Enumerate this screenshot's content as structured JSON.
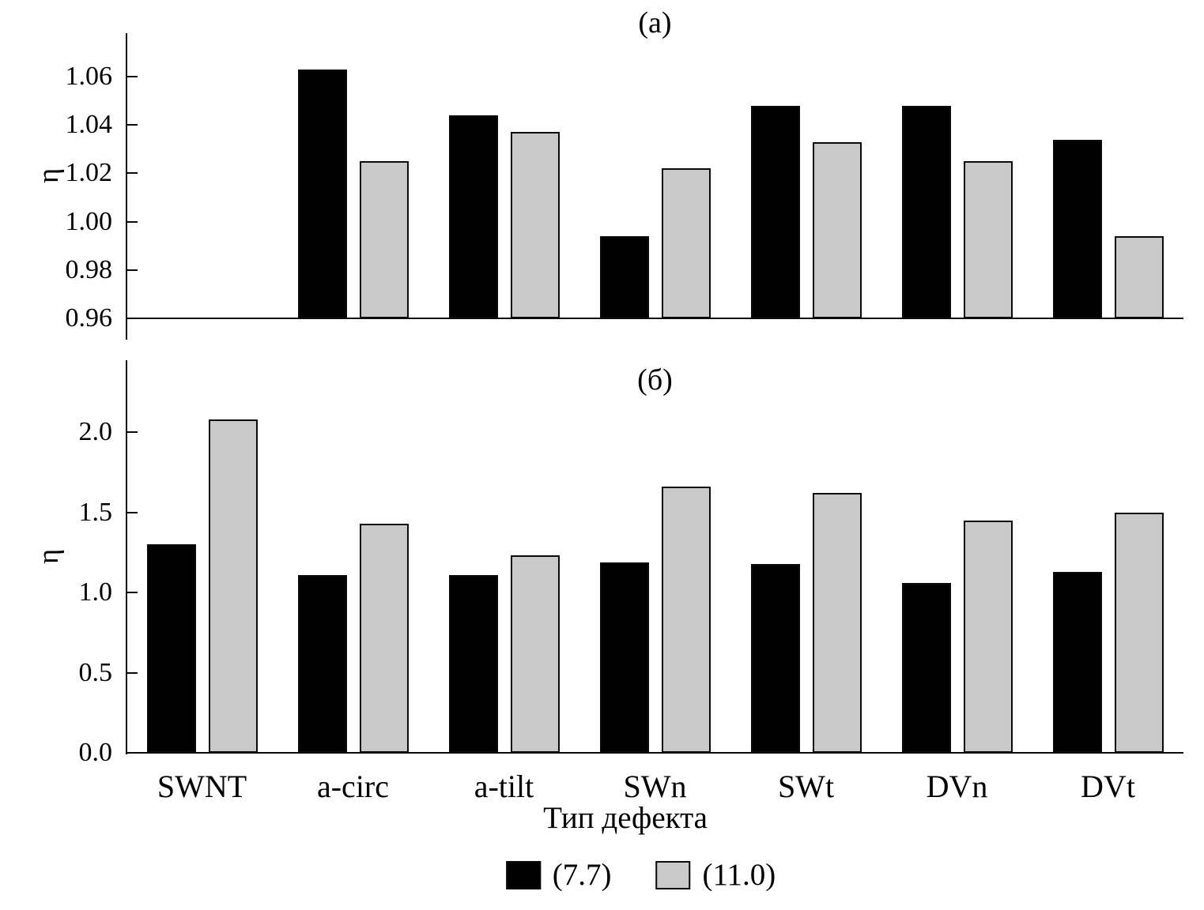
{
  "chart_data": [
    {
      "type": "bar",
      "panel_label": "(а)",
      "ylabel": "η",
      "xlabel": "",
      "categories": [
        "SWNT",
        "a-circ",
        "a-tilt",
        "SWn",
        "SWt",
        "DVn",
        "DVt"
      ],
      "series": [
        {
          "name": "(7.7)",
          "color": "#000000",
          "values": [
            null,
            1.063,
            1.044,
            0.994,
            1.048,
            1.048,
            1.034
          ]
        },
        {
          "name": "(11.0)",
          "color": "#c9c9c9",
          "values": [
            null,
            1.025,
            1.037,
            1.022,
            1.033,
            1.025,
            0.994
          ]
        }
      ],
      "ylim": [
        0.96,
        1.078
      ],
      "ytick_values": [
        1.06,
        1.04,
        1.02,
        1.0,
        0.98,
        0.96
      ],
      "ytick_labels": [
        "1.06",
        "1.04",
        "1.02",
        "1.00",
        "0.98",
        "0.96"
      ],
      "grid": false,
      "legend_position": "bottom"
    },
    {
      "type": "bar",
      "panel_label": "(б)",
      "ylabel": "η",
      "xlabel": "Тип дефекта",
      "categories": [
        "SWNT",
        "a-circ",
        "a-tilt",
        "SWn",
        "SWt",
        "DVn",
        "DVt"
      ],
      "series": [
        {
          "name": "(7.7)",
          "color": "#000000",
          "values": [
            1.3,
            1.11,
            1.11,
            1.19,
            1.18,
            1.06,
            1.13
          ]
        },
        {
          "name": "(11.0)",
          "color": "#c9c9c9",
          "values": [
            2.08,
            1.43,
            1.23,
            1.66,
            1.62,
            1.45,
            1.5
          ]
        }
      ],
      "ylim": [
        0,
        2.45
      ],
      "ytick_values": [
        2.0,
        1.5,
        1.0,
        0.5,
        0.0
      ],
      "ytick_labels": [
        "2.0",
        "1.5",
        "1.0",
        "0.5",
        "0.0"
      ],
      "grid": false,
      "legend_position": "bottom"
    }
  ],
  "legend": {
    "position": "bottom",
    "items": [
      {
        "label": "(7.7)",
        "color": "#000000"
      },
      {
        "label": "(11.0)",
        "color": "#c9c9c9"
      }
    ]
  }
}
